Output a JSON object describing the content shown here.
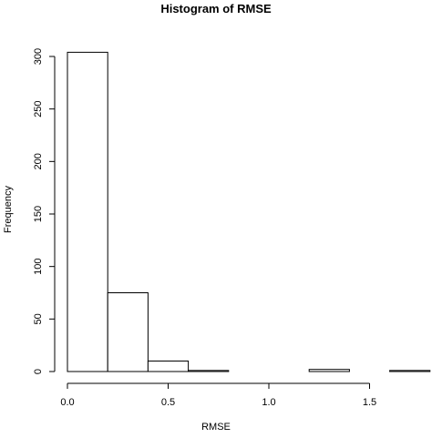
{
  "chart_data": {
    "type": "histogram",
    "title": "Histogram of RMSE",
    "xlabel": "RMSE",
    "ylabel": "Frequency",
    "bin_width": 0.2,
    "bins": [
      {
        "start": 0.0,
        "end": 0.2,
        "count": 304
      },
      {
        "start": 0.2,
        "end": 0.4,
        "count": 75
      },
      {
        "start": 0.4,
        "end": 0.6,
        "count": 10
      },
      {
        "start": 0.6,
        "end": 0.8,
        "count": 1
      },
      {
        "start": 0.8,
        "end": 1.0,
        "count": 0
      },
      {
        "start": 1.0,
        "end": 1.2,
        "count": 0
      },
      {
        "start": 1.2,
        "end": 1.4,
        "count": 2
      },
      {
        "start": 1.4,
        "end": 1.6,
        "count": 0
      },
      {
        "start": 1.6,
        "end": 1.8,
        "count": 1
      }
    ],
    "xlim": [
      0,
      1.8
    ],
    "ylim": [
      0,
      300
    ],
    "xticks": [
      0.0,
      0.5,
      1.0,
      1.5
    ],
    "xtick_labels": [
      "0.0",
      "0.5",
      "1.0",
      "1.5"
    ],
    "yticks": [
      0,
      50,
      100,
      150,
      200,
      250,
      300
    ],
    "ytick_labels": [
      "0",
      "50",
      "100",
      "150",
      "200",
      "250",
      "300"
    ],
    "grid": false,
    "colors": {
      "bar_fill": "#ffffff",
      "bar_stroke": "#000000",
      "axis": "#000000"
    }
  }
}
